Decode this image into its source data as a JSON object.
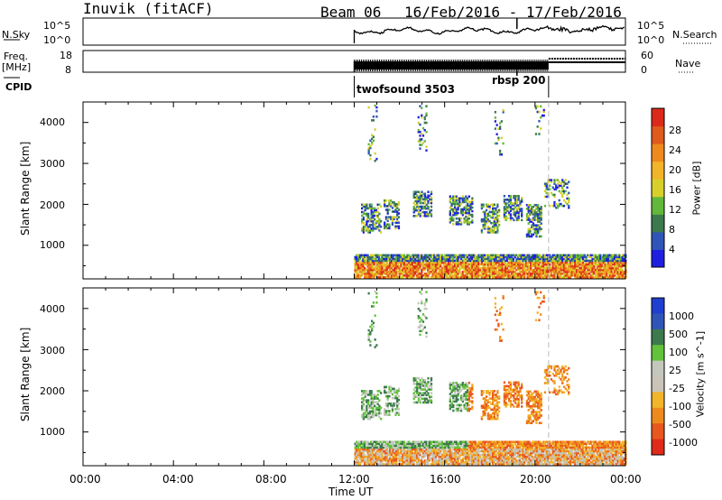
{
  "header": {
    "station": "Inuvik (fitACF)",
    "beam": "Beam 06",
    "dates": "16/Feb/2016 - 17/Feb/2016"
  },
  "side_labels": {
    "nsky": "N.Sky",
    "freq_top": "Freq.",
    "freq_unit": "[MHz]",
    "cpid": "CPID",
    "nsearch": "N.Search",
    "nave": "Nave"
  },
  "strip_ticks": {
    "noise_left": [
      "10^5",
      "10^0"
    ],
    "noise_right": [
      "10^5",
      "10^0"
    ],
    "freq_left": [
      "18",
      "8"
    ],
    "freq_right": [
      "60",
      "0"
    ]
  },
  "cpid_labels": [
    "twofsound 3503",
    "rbsp 200"
  ],
  "colors": {
    "power": [
      "#1f1fe0",
      "#2f55b8",
      "#3c7a4e",
      "#62b83a",
      "#d7d02a",
      "#f2b428",
      "#ee8a1d",
      "#e05a1c",
      "#dc2a1a"
    ],
    "velocity": [
      "#e02a1a",
      "#e8571e",
      "#ee8a1d",
      "#f2b428",
      "#c9c3b8",
      "#c4c8bc",
      "#62c23a",
      "#3c7a4e",
      "#2f55b8",
      "#1f3fd0"
    ],
    "trace": "#000000",
    "dash": "#bbbbbb"
  },
  "chart_data": [
    {
      "type": "heatmap",
      "panel": "power",
      "ylabel": "Slant Range [km]",
      "colorbar_label": "Power [dB]",
      "colorbar_ticks": [
        "4",
        "8",
        "12",
        "16",
        "20",
        "24",
        "28"
      ],
      "colorbar_range": [
        0,
        32
      ],
      "xlim": [
        "00:00",
        "24:00"
      ],
      "ylim": [
        180,
        4500
      ],
      "yticks": [
        "1000",
        "2000",
        "3000",
        "4000"
      ],
      "data_start": "12:00"
    },
    {
      "type": "heatmap",
      "panel": "velocity",
      "ylabel": "Slant Range [km]",
      "colorbar_label": "Velocity [m s^-1]",
      "colorbar_ticks": [
        "-1000",
        "-500",
        "-100",
        "-25",
        "25",
        "100",
        "500",
        "1000"
      ],
      "xlim": [
        "00:00",
        "24:00"
      ],
      "ylim": [
        180,
        4500
      ],
      "yticks": [
        "1000",
        "2000",
        "3000",
        "4000"
      ],
      "data_start": "12:00"
    }
  ],
  "xaxis": {
    "ticks": [
      "00:00",
      "04:00",
      "08:00",
      "12:00",
      "16:00",
      "20:00",
      "00:00"
    ],
    "label": "Time UT"
  }
}
